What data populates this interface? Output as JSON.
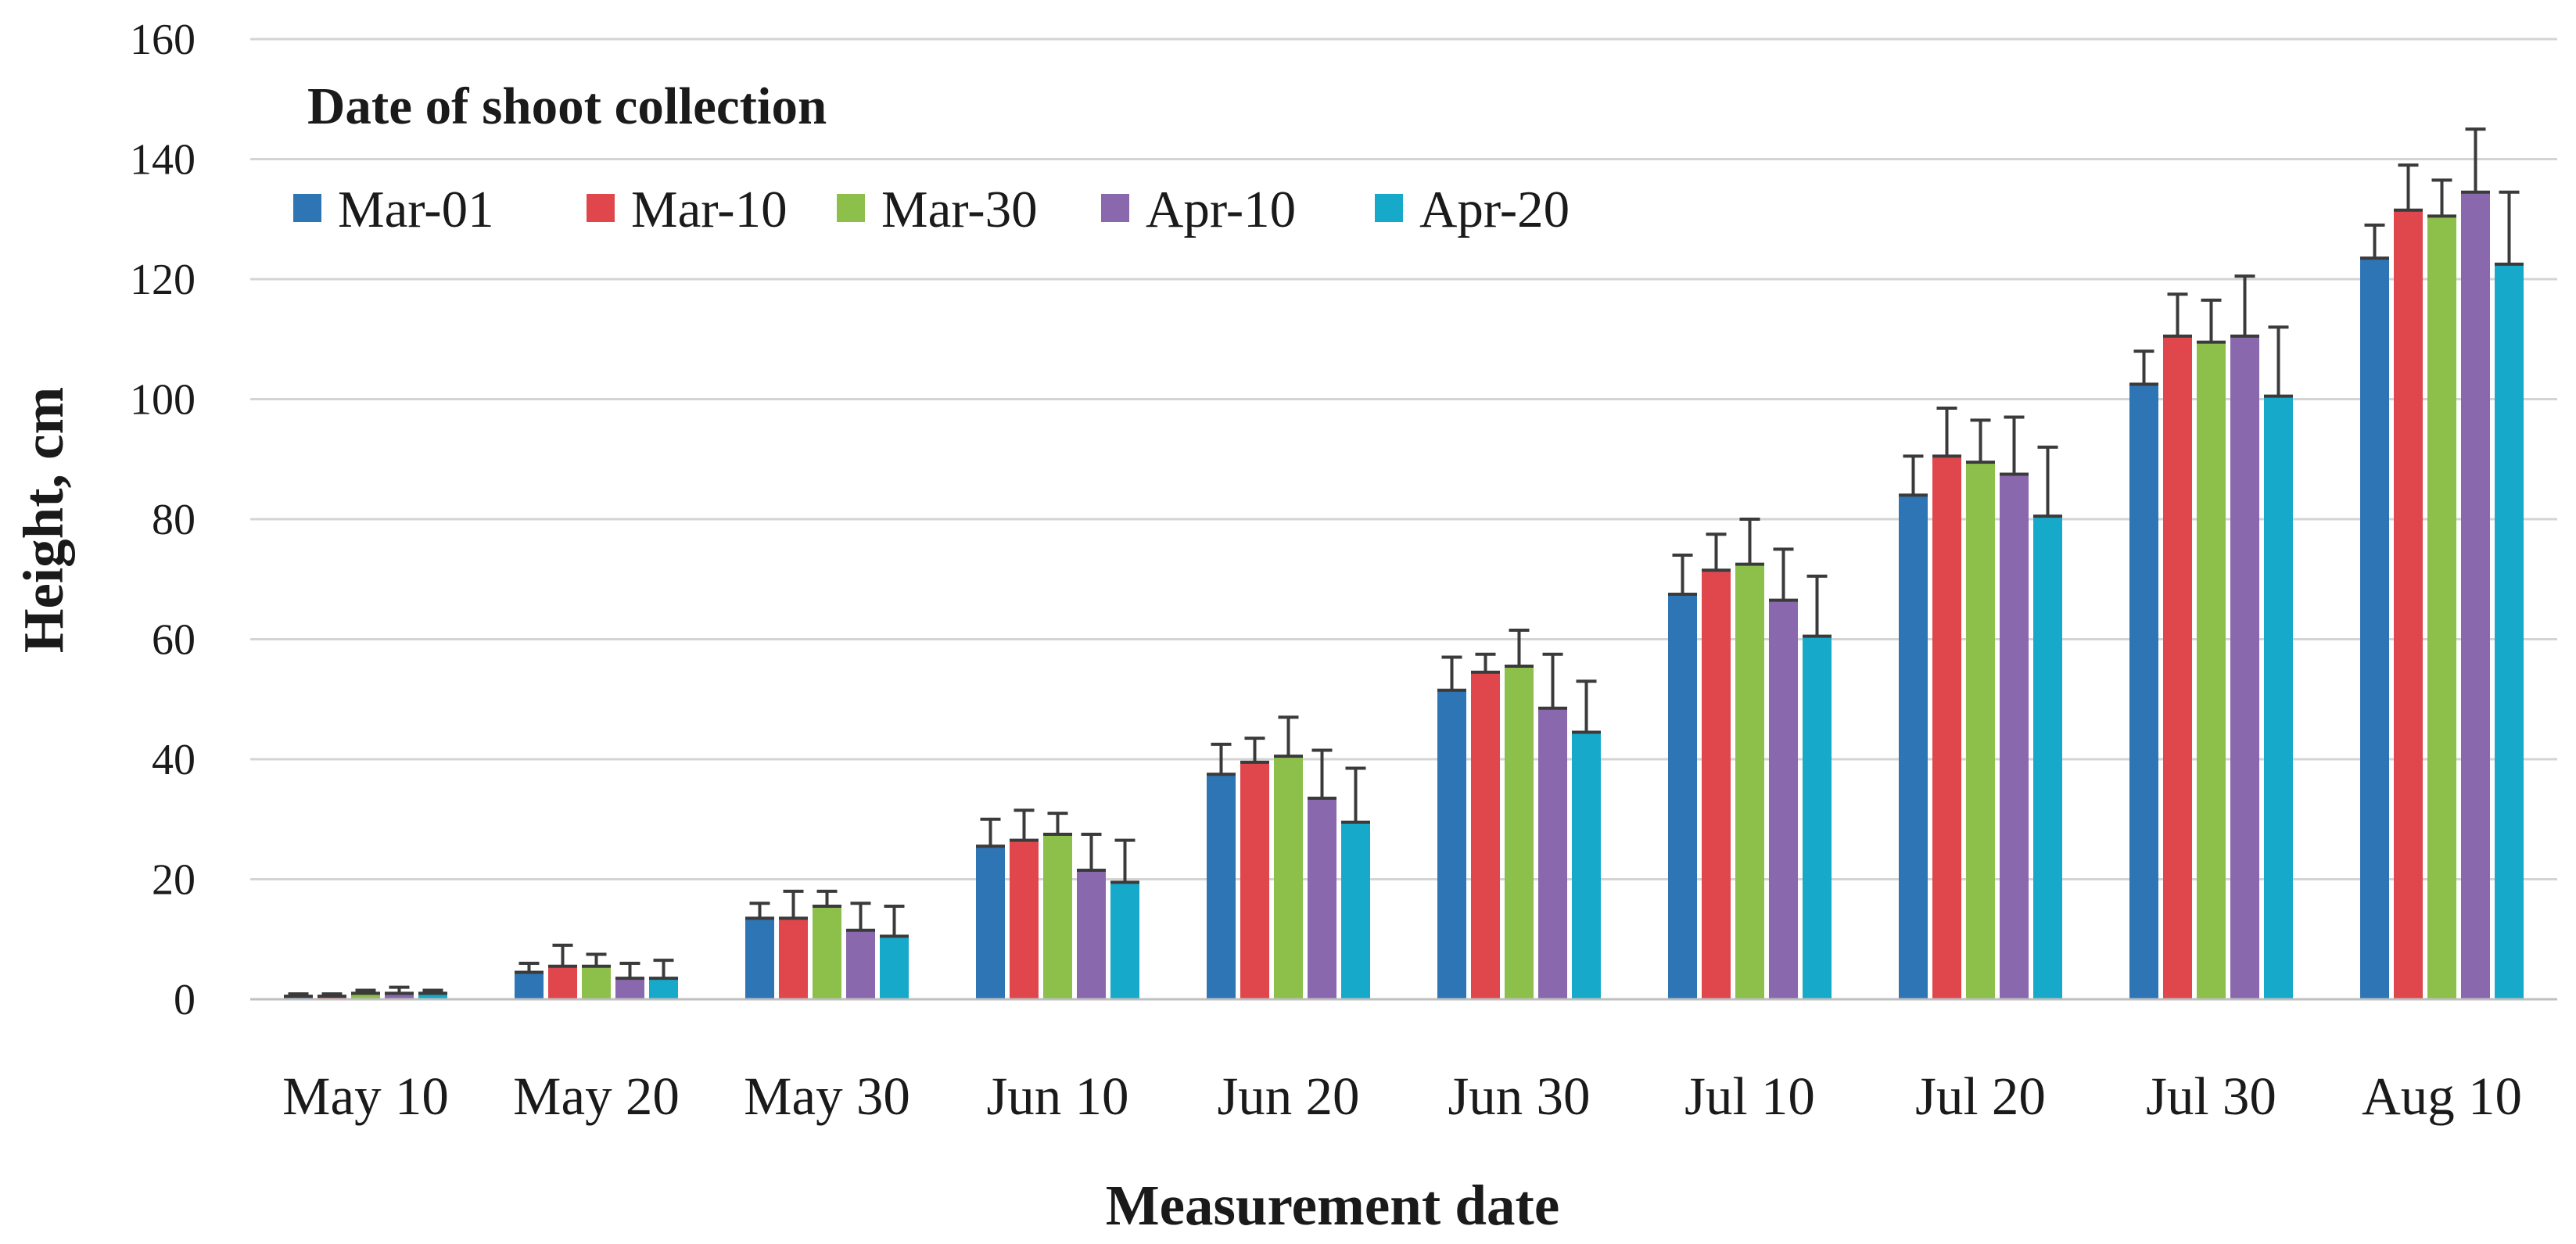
{
  "chart_data": {
    "type": "bar",
    "title": "",
    "xlabel": "Measurement date",
    "ylabel": "Height, cm",
    "ylim": [
      0,
      160
    ],
    "yticks": [
      "0",
      "20",
      "40",
      "60",
      "80",
      "100",
      "120",
      "140",
      "160"
    ],
    "grid": true,
    "error_bars": true,
    "legend": {
      "title": "Date of shoot collection",
      "position": "top-left"
    },
    "categories": [
      "May 10",
      "May 20",
      "May 30",
      "Jun 10",
      "Jun 20",
      "Jun 30",
      "Jul 10",
      "Jul 20",
      "Jul 30",
      "Aug 10"
    ],
    "series": [
      {
        "name": "Mar-01",
        "color": "#2e75b6",
        "values": [
          0.5,
          4.5,
          13.5,
          25.5,
          37.5,
          51.5,
          67.5,
          84,
          102.5,
          123.5
        ],
        "errors": [
          0.4,
          1.5,
          2.5,
          4.5,
          5,
          5.5,
          6.5,
          6.5,
          5.5,
          5.5
        ]
      },
      {
        "name": "Mar-10",
        "color": "#e0474c",
        "values": [
          0.5,
          5.5,
          13.5,
          26.5,
          39.5,
          54.5,
          71.5,
          90.5,
          110.5,
          131.5
        ],
        "errors": [
          0.4,
          3.5,
          4.5,
          5,
          4,
          3,
          6,
          8,
          7,
          7.5
        ]
      },
      {
        "name": "Mar-30",
        "color": "#8cc04a",
        "values": [
          1,
          5.5,
          15.5,
          27.5,
          40.5,
          55.5,
          72.5,
          89.5,
          109.5,
          130.5
        ],
        "errors": [
          0.5,
          2,
          2.5,
          3.5,
          6.5,
          6,
          7.5,
          7,
          7,
          6
        ]
      },
      {
        "name": "Apr-10",
        "color": "#8a68ad",
        "values": [
          1,
          3.5,
          11.5,
          21.5,
          33.5,
          48.5,
          66.5,
          87.5,
          110.5,
          134.5
        ],
        "errors": [
          1,
          2.5,
          4.5,
          6,
          8,
          9,
          8.5,
          9.5,
          10,
          10.5
        ]
      },
      {
        "name": "Apr-20",
        "color": "#17a9c9",
        "values": [
          1,
          3.5,
          10.5,
          19.5,
          29.5,
          44.5,
          60.5,
          80.5,
          100.5,
          122.5
        ],
        "errors": [
          0.5,
          3,
          5,
          7,
          9,
          8.5,
          10,
          11.5,
          11.5,
          12
        ]
      }
    ]
  }
}
